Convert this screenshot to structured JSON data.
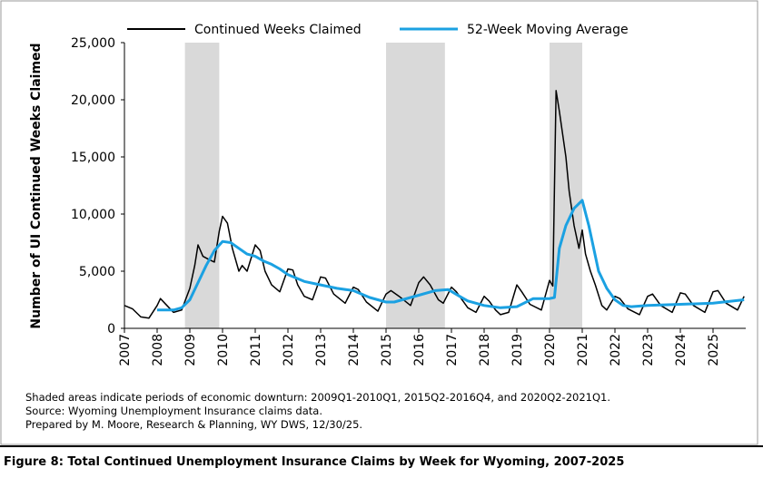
{
  "chart_data": {
    "type": "line",
    "ylabel": "Number of UI Continued Weeks Claimed",
    "xlim": [
      2007,
      2026
    ],
    "xticks": [
      2007,
      2008,
      2009,
      2010,
      2011,
      2012,
      2013,
      2014,
      2015,
      2016,
      2017,
      2018,
      2019,
      2020,
      2021,
      2022,
      2023,
      2024,
      2025
    ],
    "ylim": [
      0,
      25000
    ],
    "yticks": [
      0,
      {
        "value": 5000,
        "label": "5,000"
      },
      {
        "value": 10000,
        "label": "10,000"
      },
      {
        "value": 15000,
        "label": "15,000"
      },
      {
        "value": 20000,
        "label": "20,000"
      },
      {
        "value": 25000,
        "label": "25,000"
      }
    ],
    "shaded_periods": [
      [
        2008.85,
        2009.9
      ],
      [
        2015.0,
        2016.8
      ],
      [
        2020.0,
        2021.0
      ]
    ],
    "shade_color": "#d9d9d9",
    "legend": "top",
    "series": [
      {
        "name": "Continued Weeks Claimed",
        "color": "#000000",
        "x": [
          2007.0,
          2007.25,
          2007.5,
          2007.75,
          2008.0,
          2008.1,
          2008.3,
          2008.5,
          2008.75,
          2009.0,
          2009.15,
          2009.25,
          2009.4,
          2009.6,
          2009.75,
          2009.9,
          2010.0,
          2010.15,
          2010.3,
          2010.5,
          2010.6,
          2010.75,
          2011.0,
          2011.15,
          2011.3,
          2011.5,
          2011.75,
          2012.0,
          2012.15,
          2012.3,
          2012.5,
          2012.75,
          2013.0,
          2013.15,
          2013.4,
          2013.75,
          2014.0,
          2014.15,
          2014.4,
          2014.75,
          2015.0,
          2015.15,
          2015.4,
          2015.75,
          2016.0,
          2016.15,
          2016.35,
          2016.6,
          2016.75,
          2017.0,
          2017.15,
          2017.5,
          2017.75,
          2018.0,
          2018.15,
          2018.35,
          2018.5,
          2018.75,
          2019.0,
          2019.15,
          2019.4,
          2019.75,
          2020.0,
          2020.1,
          2020.2,
          2020.3,
          2020.4,
          2020.5,
          2020.6,
          2020.75,
          2020.9,
          2021.0,
          2021.1,
          2021.25,
          2021.4,
          2021.6,
          2021.75,
          2022.0,
          2022.15,
          2022.4,
          2022.75,
          2023.0,
          2023.15,
          2023.4,
          2023.75,
          2024.0,
          2024.15,
          2024.4,
          2024.75,
          2025.0,
          2025.15,
          2025.4,
          2025.75,
          2025.95
        ],
        "values": [
          2000,
          1700,
          1000,
          900,
          2000,
          2600,
          2000,
          1400,
          1600,
          3500,
          5500,
          7300,
          6300,
          6000,
          5800,
          8500,
          9800,
          9200,
          7000,
          5000,
          5500,
          5000,
          7300,
          6800,
          5000,
          3800,
          3200,
          5200,
          5100,
          3800,
          2800,
          2500,
          4500,
          4400,
          3000,
          2200,
          3600,
          3400,
          2300,
          1500,
          3000,
          3300,
          2800,
          2000,
          4000,
          4500,
          3800,
          2500,
          2200,
          3600,
          3200,
          1800,
          1400,
          2800,
          2400,
          1600,
          1200,
          1400,
          3800,
          3200,
          2100,
          1600,
          4200,
          3700,
          20800,
          19000,
          17000,
          15000,
          12000,
          9000,
          7000,
          8600,
          6500,
          5000,
          3800,
          2000,
          1600,
          2800,
          2600,
          1700,
          1200,
          2800,
          3000,
          2000,
          1400,
          3100,
          3000,
          2000,
          1400,
          3200,
          3300,
          2200,
          1600,
          2800
        ]
      },
      {
        "name": "52-Week Moving Average",
        "color": "#1ba1e2",
        "x": [
          2008.0,
          2008.5,
          2008.75,
          2009.0,
          2009.25,
          2009.5,
          2009.75,
          2010.0,
          2010.25,
          2010.5,
          2010.75,
          2011.0,
          2011.25,
          2011.5,
          2011.75,
          2012.0,
          2012.5,
          2013.0,
          2013.5,
          2014.0,
          2014.5,
          2015.0,
          2015.25,
          2015.5,
          2016.0,
          2016.5,
          2016.9,
          2017.25,
          2017.5,
          2018.0,
          2018.5,
          2019.0,
          2019.5,
          2020.0,
          2020.15,
          2020.3,
          2020.5,
          2020.75,
          2021.0,
          2021.2,
          2021.5,
          2021.75,
          2022.0,
          2022.25,
          2022.5,
          2023.0,
          2024.0,
          2025.0,
          2025.95
        ],
        "values": [
          1600,
          1600,
          1800,
          2500,
          4000,
          5500,
          6800,
          7600,
          7500,
          7000,
          6500,
          6300,
          5900,
          5600,
          5200,
          4700,
          4100,
          3800,
          3500,
          3300,
          2700,
          2300,
          2300,
          2500,
          2900,
          3300,
          3400,
          2800,
          2400,
          2000,
          1800,
          1900,
          2600,
          2600,
          2700,
          7000,
          9000,
          10500,
          11200,
          9000,
          5000,
          3500,
          2500,
          2000,
          1900,
          2000,
          2100,
          2200,
          2500
        ]
      }
    ],
    "notes": [
      "Shaded areas indicate periods of economic downturn: 2009Q1-2010Q1, 2015Q2-2016Q4, and 2020Q2-2021Q1.",
      "Source: Wyoming Unemployment Insurance claims data.",
      "Prepared by M. Moore, Research & Planning, WY DWS, 12/30/25."
    ],
    "caption": "Figure 8: Total Continued Unemployment Insurance Claims by Week for Wyoming, 2007-2025"
  }
}
